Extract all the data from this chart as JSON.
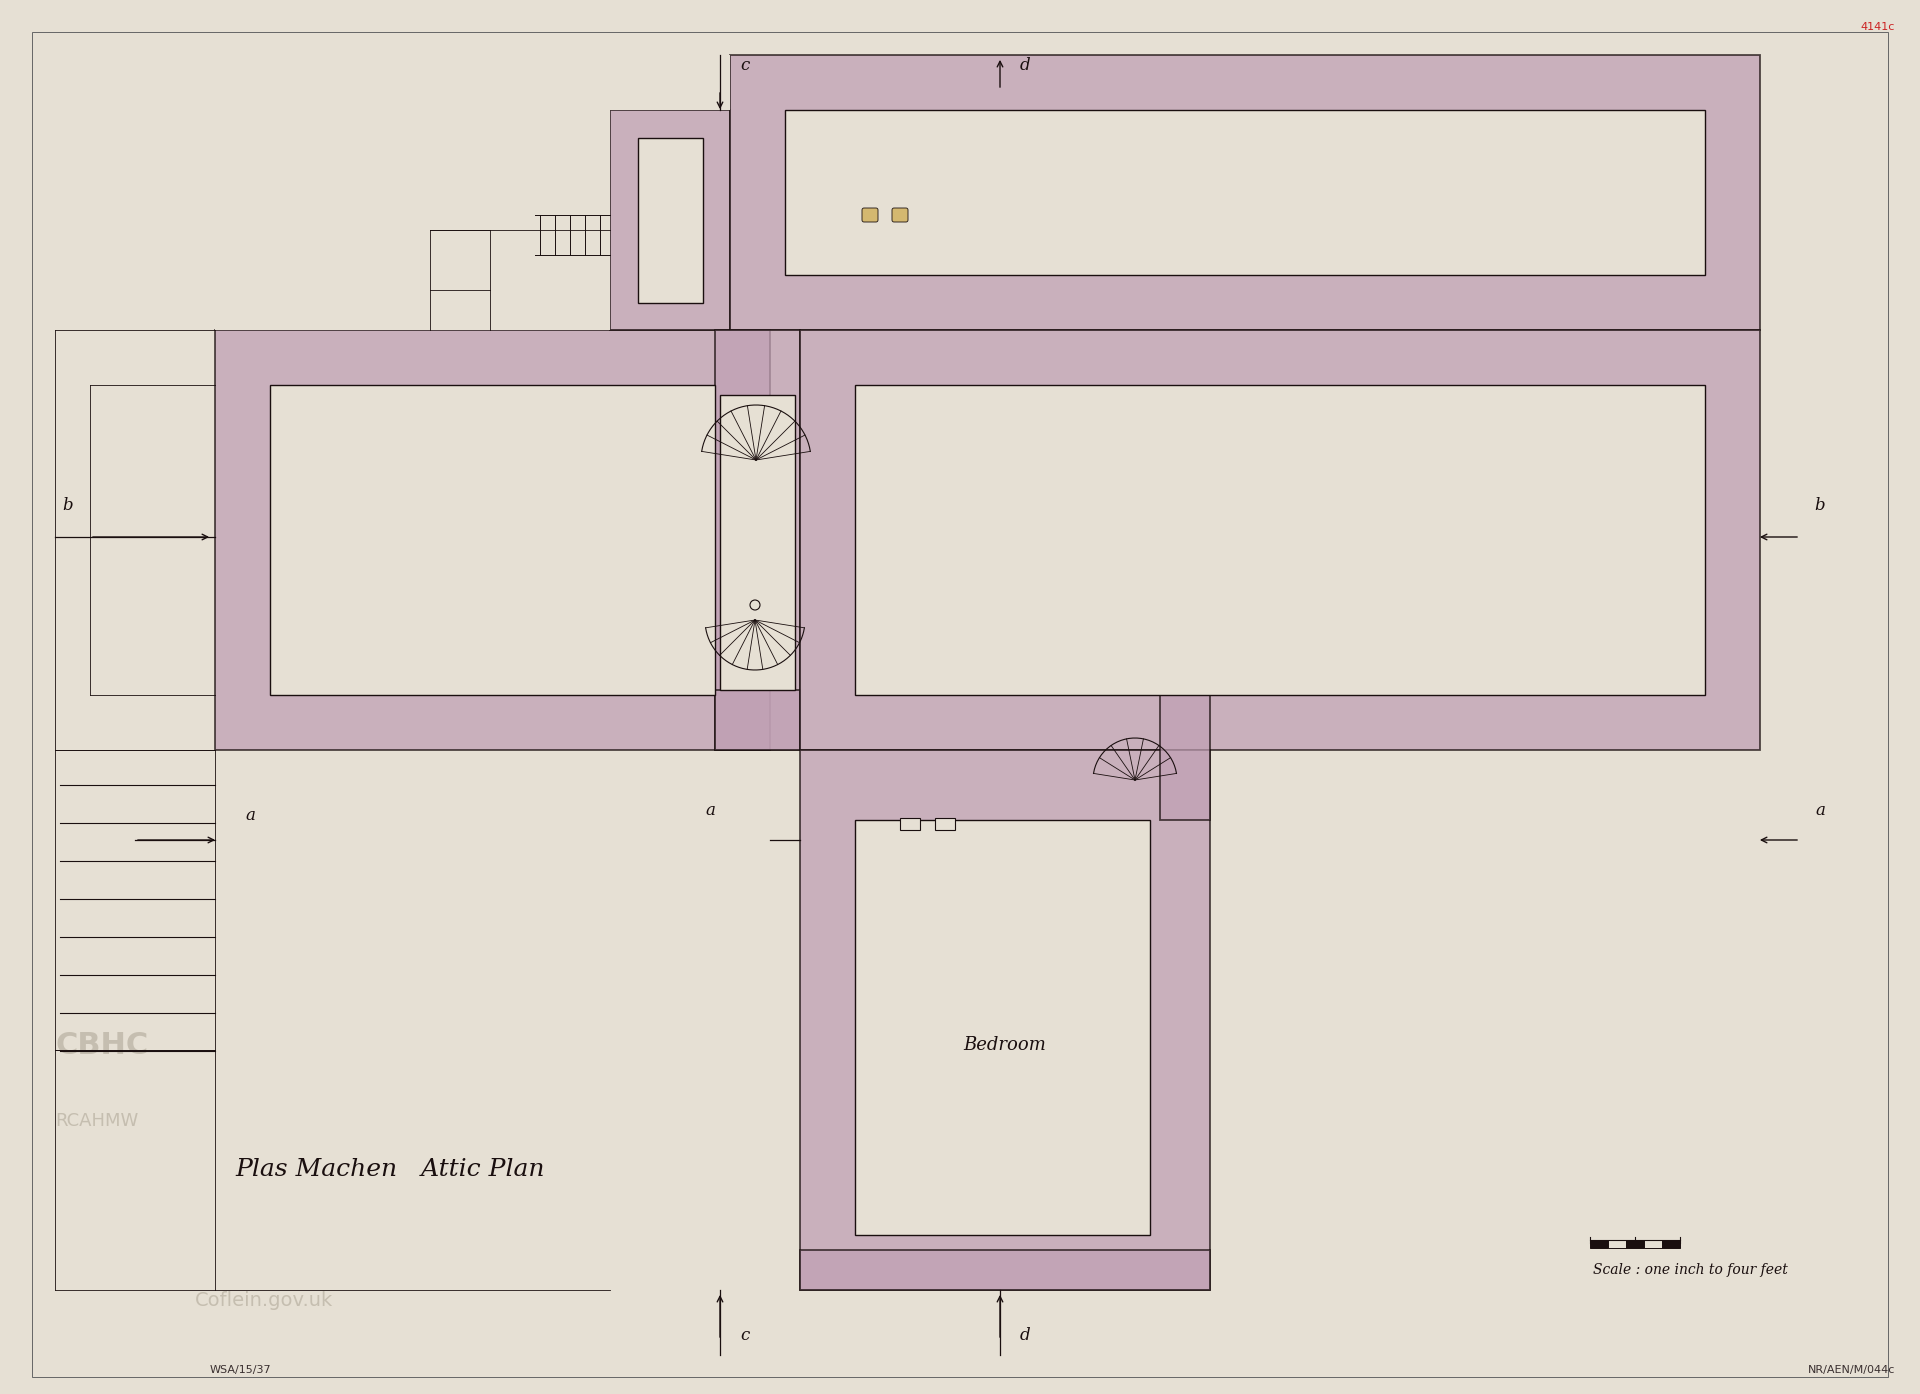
{
  "paper_color": "#e6e0d4",
  "wall_color": "#c0a0b4",
  "wall_alpha": 0.75,
  "wall_edge_color": "#1a0f0f",
  "line_color": "#1a0f0f",
  "title": "Plas Machen   Attic Plan",
  "scale_text": "Scale : one inch to four feet",
  "bedroom_label": "Bedroom",
  "figsize": [
    19.2,
    13.94
  ],
  "dpi": 100
}
